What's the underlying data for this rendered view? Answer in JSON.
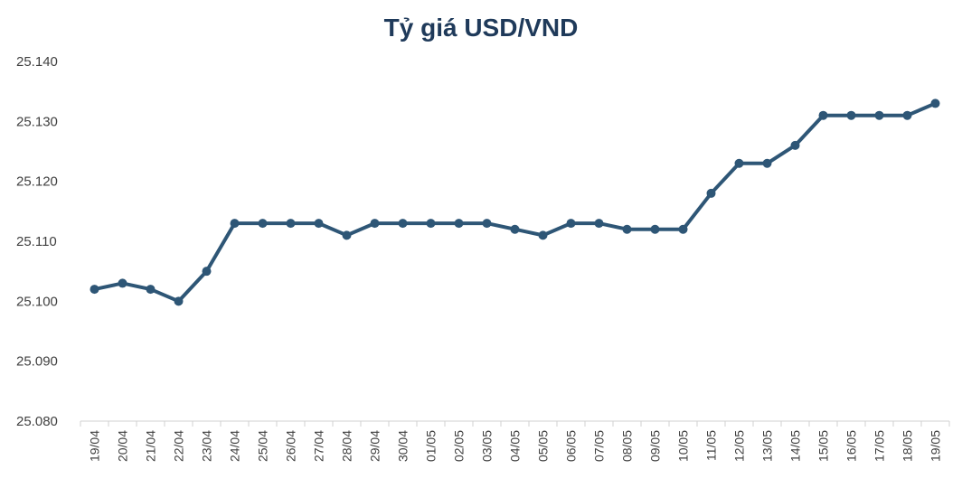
{
  "chart_data": {
    "type": "line",
    "title": "Tỷ giá USD/VND",
    "xlabel": "",
    "ylabel": "",
    "ylim": [
      25080,
      25140
    ],
    "y_ticks": [
      {
        "value": 25080,
        "label": "25.080"
      },
      {
        "value": 25090,
        "label": "25.090"
      },
      {
        "value": 25100,
        "label": "25.100"
      },
      {
        "value": 25110,
        "label": "25.110"
      },
      {
        "value": 25120,
        "label": "25.120"
      },
      {
        "value": 25130,
        "label": "25.130"
      },
      {
        "value": 25140,
        "label": "25.140"
      }
    ],
    "grid": false,
    "legend": "none",
    "categories": [
      "19/04",
      "20/04",
      "21/04",
      "22/04",
      "23/04",
      "24/04",
      "25/04",
      "26/04",
      "27/04",
      "28/04",
      "29/04",
      "30/04",
      "01/05",
      "02/05",
      "03/05",
      "04/05",
      "05/05",
      "06/05",
      "07/05",
      "08/05",
      "09/05",
      "10/05",
      "11/05",
      "12/05",
      "13/05",
      "14/05",
      "15/05",
      "16/05",
      "17/05",
      "18/05",
      "19/05"
    ],
    "series": [
      {
        "values": [
          25102,
          25103,
          25102,
          25100,
          25105,
          25113,
          25113,
          25113,
          25113,
          25111,
          25113,
          25113,
          25113,
          25113,
          25113,
          25112,
          25111,
          25113,
          25113,
          25112,
          25112,
          25112,
          25118,
          25123,
          25123,
          25126,
          25131,
          25131,
          25131,
          25131,
          25133
        ],
        "color": "#2e5676"
      }
    ]
  }
}
